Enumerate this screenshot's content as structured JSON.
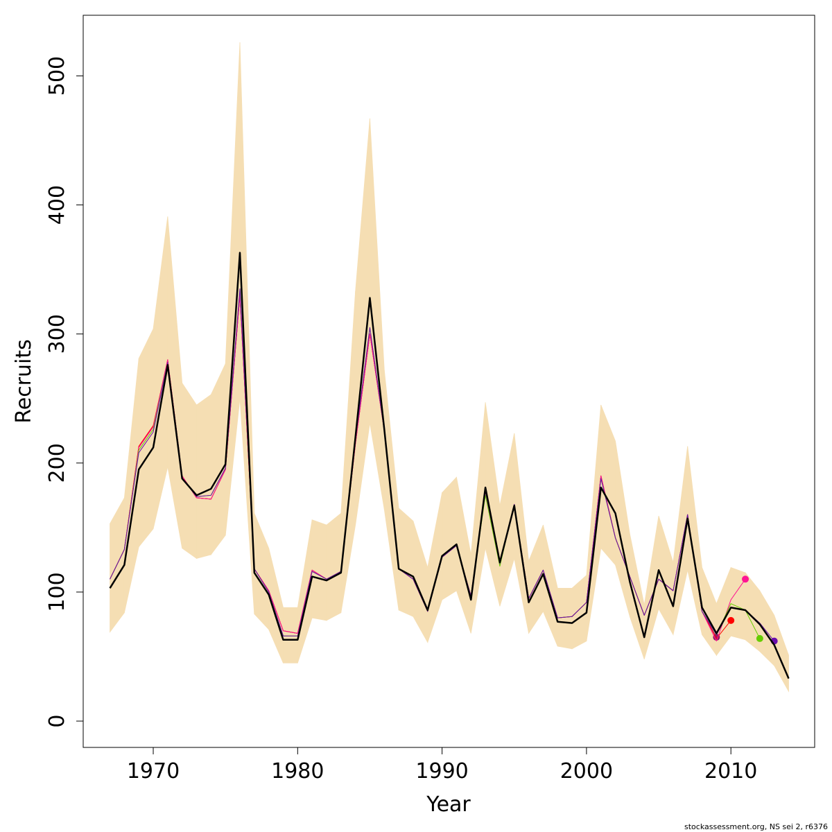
{
  "chart_data": {
    "type": "line",
    "x_label": "Year",
    "y_label": "Recruits",
    "footnote": "stockassessment.org, NS sei 2, r6376",
    "xlim": [
      1965.15,
      2015.8
    ],
    "ylim": [
      -20.4,
      547
    ],
    "xticks": [
      1970,
      1980,
      1990,
      2000,
      2010
    ],
    "yticks": [
      0,
      100,
      200,
      300,
      400,
      500
    ],
    "x": [
      1967,
      1968,
      1969,
      1970,
      1971,
      1972,
      1973,
      1974,
      1975,
      1976,
      1977,
      1978,
      1979,
      1980,
      1981,
      1982,
      1983,
      1984,
      1985,
      1986,
      1987,
      1988,
      1989,
      1990,
      1991,
      1992,
      1993,
      1994,
      1995,
      1996,
      1997,
      1998,
      1999,
      2000,
      2001,
      2002,
      2003,
      2004,
      2005,
      2006,
      2007,
      2008,
      2009,
      2010,
      2011,
      2012,
      2013,
      2014
    ],
    "band": {
      "color": "#f5deb3",
      "upper": [
        153,
        173,
        281,
        304,
        391,
        262,
        245,
        253,
        277,
        526,
        161,
        134,
        88,
        88,
        156,
        152,
        161,
        333,
        467,
        272,
        165,
        155,
        119,
        177,
        189,
        129,
        247,
        167,
        223,
        124,
        152,
        103,
        103,
        113,
        245,
        217,
        145,
        90,
        159,
        123,
        213,
        119,
        91,
        119,
        115,
        101,
        82,
        51
      ],
      "lower": [
        69,
        84,
        135,
        149,
        197,
        134,
        126,
        129,
        144,
        250,
        83,
        71,
        45,
        45,
        80,
        78,
        84,
        152,
        231,
        164,
        86,
        81,
        61,
        94,
        101,
        68,
        134,
        89,
        126,
        68,
        85,
        58,
        56,
        62,
        134,
        121,
        81,
        48,
        87,
        67,
        117,
        67,
        51,
        66,
        63,
        54,
        43,
        23
      ]
    },
    "series": [
      {
        "color": "#8b1c62",
        "line_width": 1,
        "end_marker": true,
        "values": [
          110,
          133,
          212,
          228,
          280,
          190,
          173,
          172,
          195,
          330,
          118,
          101,
          70,
          68,
          117,
          110,
          116,
          215,
          300,
          225,
          118,
          110,
          85,
          127,
          136,
          97,
          178,
          122,
          168,
          95,
          117,
          80,
          81,
          92,
          190,
          142,
          112,
          82,
          110,
          101,
          160,
          85,
          65,
          null,
          null,
          null,
          null,
          null
        ]
      },
      {
        "color": "#ff0000",
        "line_width": 1,
        "end_marker": true,
        "values": [
          110,
          133,
          213,
          229,
          280,
          190,
          173,
          172,
          195,
          330,
          118,
          101,
          70,
          68,
          117,
          110,
          116,
          215,
          300,
          225,
          118,
          110,
          85,
          127,
          136,
          97,
          178,
          122,
          168,
          95,
          117,
          80,
          81,
          92,
          190,
          142,
          112,
          82,
          110,
          101,
          160,
          85,
          64,
          78,
          null,
          null,
          null,
          null
        ]
      },
      {
        "color": "#ff1493",
        "line_width": 1,
        "end_marker": true,
        "values": [
          110,
          133,
          212,
          228,
          280,
          190,
          173,
          172,
          195,
          330,
          118,
          101,
          70,
          68,
          117,
          110,
          116,
          215,
          300,
          225,
          118,
          110,
          85,
          127,
          136,
          97,
          178,
          122,
          168,
          95,
          117,
          80,
          81,
          92,
          190,
          142,
          112,
          82,
          110,
          101,
          160,
          85,
          62,
          94,
          110,
          null,
          null,
          null
        ]
      },
      {
        "color": "#66cc00",
        "line_width": 1,
        "end_marker": true,
        "values": [
          110,
          133,
          210,
          226,
          278,
          188,
          174,
          175,
          196,
          335,
          118,
          100,
          66,
          66,
          116,
          110,
          116,
          218,
          305,
          225,
          118,
          110,
          85,
          127,
          136,
          97,
          175,
          120,
          168,
          95,
          117,
          80,
          81,
          92,
          188,
          142,
          112,
          82,
          110,
          101,
          160,
          85,
          67,
          91,
          86,
          64,
          null,
          null
        ]
      },
      {
        "color": "#6a0dad",
        "line_width": 1,
        "end_marker": true,
        "values": [
          110,
          133,
          208,
          224,
          278,
          188,
          174,
          175,
          196,
          335,
          118,
          100,
          66,
          66,
          116,
          110,
          116,
          218,
          305,
          225,
          118,
          110,
          85,
          127,
          136,
          97,
          178,
          122,
          168,
          95,
          117,
          80,
          81,
          92,
          188,
          142,
          112,
          82,
          110,
          101,
          160,
          85,
          67,
          88,
          86,
          76,
          62,
          null
        ]
      },
      {
        "color": "#000000",
        "line_width": 2.5,
        "end_marker": false,
        "values": [
          103,
          121,
          195,
          212,
          276,
          188,
          175,
          180,
          199,
          363,
          115,
          98,
          63,
          63,
          112,
          109,
          115,
          220,
          328,
          226,
          118,
          112,
          86,
          128,
          137,
          94,
          181,
          123,
          167,
          92,
          114,
          77,
          76,
          84,
          181,
          161,
          108,
          65,
          117,
          89,
          157,
          88,
          68,
          88,
          86,
          75,
          59,
          33
        ]
      }
    ]
  }
}
